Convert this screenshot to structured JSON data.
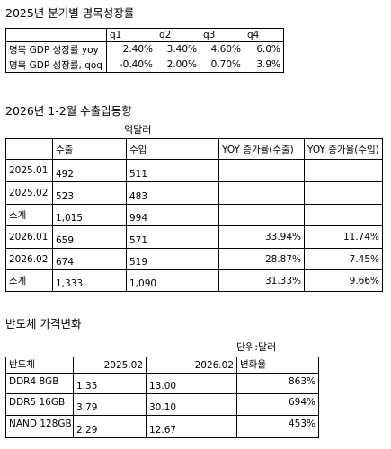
{
  "section1": {
    "title": "2025년 분기별 명목성장률",
    "headers": [
      "",
      "q1",
      "q2",
      "q3",
      "q4"
    ],
    "rows": [
      {
        "label": "명목 GDP 성장률  yoy",
        "values": [
          "2.40%",
          "3.40%",
          "4.60%",
          "6.0%"
        ]
      },
      {
        "label": "명목 GDP 성장률, qoq",
        "values": [
          "-0.40%",
          "2.00%",
          "0.70%",
          "3.9%"
        ]
      }
    ]
  },
  "section2": {
    "title": "2026년 1-2월 수출입동향",
    "unit": "억달러",
    "headers": [
      "",
      "수출",
      "수입",
      "YOY 증가율(수출)",
      "YOY 증가율(수입)"
    ],
    "rows": [
      {
        "label": "2025.01",
        "export": "492",
        "import": "511",
        "yoy_export": "",
        "yoy_import": ""
      },
      {
        "label": "2025.02",
        "export": "523",
        "import": "483",
        "yoy_export": "",
        "yoy_import": ""
      },
      {
        "label": "소계",
        "export": "1,015",
        "import": "994",
        "yoy_export": "",
        "yoy_import": ""
      },
      {
        "label": "2026.01",
        "export": "659",
        "import": "571",
        "yoy_export": "33.94%",
        "yoy_import": "11.74%"
      },
      {
        "label": "2026.02",
        "export": "674",
        "import": "519",
        "yoy_export": "28.87%",
        "yoy_import": "7.45%"
      },
      {
        "label": "소계",
        "export": "1,333",
        "import": "1,090",
        "yoy_export": "31.33%",
        "yoy_import": "9.66%"
      }
    ]
  },
  "section3": {
    "title": "반도체 가격변화",
    "unit": "단위:달러",
    "headers": [
      "반도체",
      "2025.02",
      "2026.02",
      "변화율"
    ],
    "rows": [
      {
        "label": "DDR4 8GB",
        "p2025": "1.35",
        "p2026": "13.00",
        "change": "863%"
      },
      {
        "label": "DDR5 16GB",
        "p2025": "3.79",
        "p2026": "30.10",
        "change": "694%"
      },
      {
        "label": "NAND 128GB",
        "p2025": "2.29",
        "p2026": "12.67",
        "change": "453%"
      }
    ]
  }
}
